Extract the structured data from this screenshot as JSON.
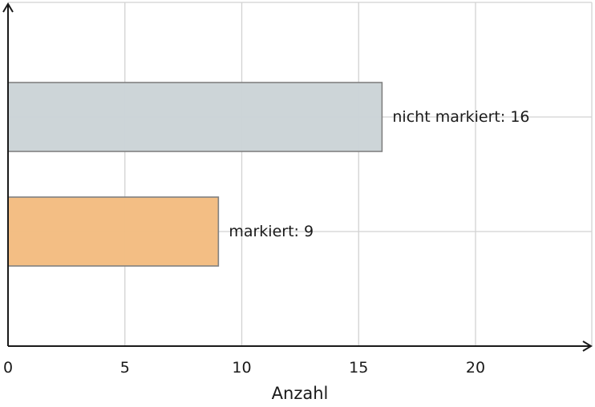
{
  "chart_data": {
    "type": "bar",
    "orientation": "horizontal",
    "categories": [
      "nicht markiert",
      "markiert"
    ],
    "values": [
      16,
      9
    ],
    "data_labels": [
      "nicht markiert: 16",
      "markiert: 9"
    ],
    "colors": [
      "#ccd4d7",
      "#f3bd82"
    ],
    "title": "",
    "xlabel": "Anzahl",
    "ylabel": "",
    "xlim": [
      0,
      25
    ],
    "xticks": [
      0,
      5,
      10,
      15,
      20
    ],
    "xtick_labels": [
      "0",
      "5",
      "10",
      "15",
      "20"
    ],
    "grid": true
  }
}
